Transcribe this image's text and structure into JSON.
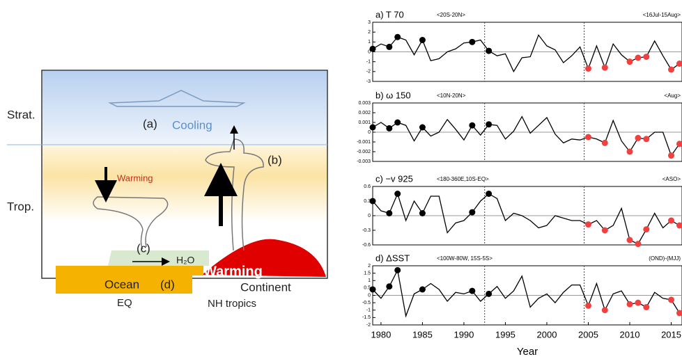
{
  "diagram": {
    "strat": "Strat.",
    "trop": "Trop.",
    "label_a": "(a)",
    "cooling": "Cooling",
    "warming_upper": "Warming",
    "label_b": "(b)",
    "label_c": "(c)",
    "h2o": "H₂O",
    "warming_surface": "Warming",
    "ocean": "Ocean",
    "label_d": "(d)",
    "continent": "Continent",
    "eq": "EQ",
    "nh": "NH tropics"
  },
  "chart_data": [
    {
      "type": "line",
      "title": "a) T 70",
      "subtitle": "<20S-20N>",
      "period": "<16Jul-15Aug>",
      "color": "#000000",
      "x": [
        1979,
        1980,
        1981,
        1982,
        1983,
        1984,
        1985,
        1986,
        1987,
        1988,
        1989,
        1990,
        1991,
        1992,
        1993,
        1994,
        1995,
        1996,
        1997,
        1998,
        1999,
        2000,
        2001,
        2002,
        2003,
        2004,
        2005,
        2006,
        2007,
        2008,
        2009,
        2010,
        2011,
        2012,
        2013,
        2014,
        2015,
        2016
      ],
      "values": [
        0.3,
        0.8,
        0.5,
        1.5,
        1.2,
        -0.3,
        1.2,
        -0.9,
        -0.7,
        0.0,
        0.3,
        0.9,
        1.0,
        1.2,
        0.1,
        -0.4,
        -0.2,
        -2.0,
        -0.6,
        -0.5,
        1.7,
        0.6,
        0.2,
        -1.1,
        -0.4,
        0.5,
        -1.7,
        0.6,
        -1.6,
        0.8,
        -0.3,
        -1.0,
        -0.6,
        -0.5,
        1.1,
        -0.4,
        -1.8,
        -1.2
      ],
      "point_colors": [
        "#000000",
        null,
        "#000000",
        "#000000",
        null,
        null,
        "#000000",
        null,
        null,
        null,
        null,
        null,
        "#000000",
        null,
        "#000000",
        null,
        null,
        null,
        null,
        null,
        null,
        null,
        null,
        null,
        null,
        null,
        "#f04040",
        null,
        "#f04040",
        null,
        null,
        "#f04040",
        "#f04040",
        "#f04040",
        null,
        null,
        "#f04040",
        "#f04040"
      ],
      "xlim": [
        1979,
        2016.3
      ],
      "ylim": [
        -3,
        3
      ],
      "yticks": [
        -3,
        -2,
        -1,
        0,
        1,
        2,
        3
      ],
      "vlines": [
        1992.5,
        2004.5
      ]
    },
    {
      "type": "line",
      "title": "b) ω 150",
      "subtitle": "<10N-20N>",
      "period": "<Aug>",
      "color": "#000000",
      "x": [
        1979,
        1980,
        1981,
        1982,
        1983,
        1984,
        1985,
        1986,
        1987,
        1988,
        1989,
        1990,
        1991,
        1992,
        1993,
        1994,
        1995,
        1996,
        1997,
        1998,
        1999,
        2000,
        2001,
        2002,
        2003,
        2004,
        2005,
        2006,
        2007,
        2008,
        2009,
        2010,
        2011,
        2012,
        2013,
        2014,
        2015,
        2016
      ],
      "values": [
        0.0005,
        0.001,
        0.0004,
        0.001,
        0.0007,
        -0.0009,
        0.0005,
        -0.0004,
        0.0,
        0.0013,
        0.0003,
        -0.0008,
        0.0007,
        -0.0003,
        0.0008,
        0.0007,
        -0.0007,
        0.0001,
        0.0016,
        -0.0001,
        0.0007,
        0.0015,
        -0.0002,
        -0.0011,
        -0.0007,
        -0.0008,
        -0.0005,
        -0.0007,
        -0.0011,
        0.0012,
        -0.0009,
        -0.002,
        -0.0006,
        -0.0007,
        0.0,
        0.0,
        -0.0024,
        -0.0012
      ],
      "point_colors": [
        "#000000",
        null,
        "#000000",
        "#000000",
        null,
        null,
        "#000000",
        null,
        null,
        null,
        null,
        null,
        "#000000",
        null,
        "#000000",
        null,
        null,
        null,
        null,
        null,
        null,
        null,
        null,
        null,
        null,
        null,
        "#f04040",
        null,
        "#f04040",
        null,
        null,
        "#f04040",
        "#f04040",
        "#f04040",
        null,
        null,
        "#f04040",
        "#f04040"
      ],
      "xlim": [
        1979,
        2016.3
      ],
      "ylim": [
        -0.003,
        0.003
      ],
      "yticks": [
        -0.003,
        -0.002,
        -0.001,
        0,
        0.001,
        0.002,
        0.003
      ],
      "vlines": [
        1992.5,
        2004.5
      ]
    },
    {
      "type": "line",
      "title": "c) −v 925",
      "subtitle": "<180-360E,10S-EQ>",
      "period": "<ASO>",
      "color": "#000000",
      "x": [
        1979,
        1980,
        1981,
        1982,
        1983,
        1984,
        1985,
        1986,
        1987,
        1988,
        1989,
        1990,
        1991,
        1992,
        1993,
        1994,
        1995,
        1996,
        1997,
        1998,
        1999,
        2000,
        2001,
        2002,
        2003,
        2004,
        2005,
        2006,
        2007,
        2008,
        2009,
        2010,
        2011,
        2012,
        2013,
        2014,
        2015,
        2016
      ],
      "values": [
        0.3,
        0.1,
        0.05,
        0.45,
        -0.1,
        0.3,
        0.05,
        0.4,
        0.4,
        -0.35,
        -0.15,
        -0.1,
        0.07,
        0.3,
        0.45,
        0.35,
        -0.1,
        0.05,
        0.0,
        -0.1,
        -0.25,
        -0.2,
        0.0,
        -0.05,
        -0.1,
        -0.1,
        -0.18,
        -0.1,
        -0.3,
        -0.2,
        0.15,
        -0.5,
        -0.58,
        -0.28,
        0.05,
        -0.25,
        -0.1,
        -0.2
      ],
      "point_colors": [
        "#000000",
        null,
        "#000000",
        "#000000",
        null,
        null,
        "#000000",
        null,
        null,
        null,
        null,
        null,
        "#000000",
        null,
        "#000000",
        null,
        null,
        null,
        null,
        null,
        null,
        null,
        null,
        null,
        null,
        null,
        "#f04040",
        null,
        "#f04040",
        null,
        null,
        "#f04040",
        "#f04040",
        "#f04040",
        null,
        null,
        "#f04040",
        "#f04040"
      ],
      "xlim": [
        1979,
        2016.3
      ],
      "ylim": [
        -0.6,
        0.6
      ],
      "yticks": [
        -0.6,
        -0.3,
        0,
        0.3,
        0.6
      ],
      "vlines": [
        1992.5,
        2004.5
      ]
    },
    {
      "type": "line",
      "title": "d) ΔSST",
      "subtitle": "<100W-80W, 15S-5S>",
      "period": "(OND)-(MJJ)",
      "color": "#000000",
      "x": [
        1979,
        1980,
        1981,
        1982,
        1983,
        1984,
        1985,
        1986,
        1987,
        1988,
        1989,
        1990,
        1991,
        1992,
        1993,
        1994,
        1995,
        1996,
        1997,
        1998,
        1999,
        2000,
        2001,
        2002,
        2003,
        2004,
        2005,
        2006,
        2007,
        2008,
        2009,
        2010,
        2011,
        2012,
        2013,
        2014,
        2015,
        2016
      ],
      "values": [
        0.4,
        -0.2,
        0.6,
        1.7,
        -1.4,
        0.1,
        0.4,
        0.8,
        0.4,
        -0.4,
        0.2,
        0.1,
        0.3,
        -0.4,
        0.1,
        0.6,
        -0.2,
        0.3,
        1.3,
        -0.8,
        -0.2,
        0.1,
        -0.5,
        0.2,
        0.7,
        0.7,
        -0.7,
        0.8,
        -1.0,
        0.1,
        0.3,
        -0.6,
        -0.5,
        -0.8,
        0.2,
        -0.2,
        -0.3,
        -1.2
      ],
      "point_colors": [
        "#000000",
        null,
        "#000000",
        "#000000",
        null,
        null,
        "#000000",
        null,
        null,
        null,
        null,
        null,
        "#000000",
        null,
        "#000000",
        null,
        null,
        null,
        null,
        null,
        null,
        null,
        null,
        null,
        null,
        null,
        "#f04040",
        null,
        "#f04040",
        null,
        null,
        "#f04040",
        "#f04040",
        "#f04040",
        null,
        null,
        "#f04040",
        "#f04040"
      ],
      "xlim": [
        1979,
        2016.3
      ],
      "ylim": [
        -2,
        2
      ],
      "yticks": [
        -2,
        -1.5,
        -1,
        -0.5,
        0,
        0.5,
        1,
        1.5,
        2
      ],
      "vlines": [
        1992.5,
        2004.5
      ],
      "xticks": [
        1980,
        1985,
        1990,
        1995,
        2000,
        2005,
        2010,
        2015
      ],
      "xlabel": "Year"
    }
  ]
}
